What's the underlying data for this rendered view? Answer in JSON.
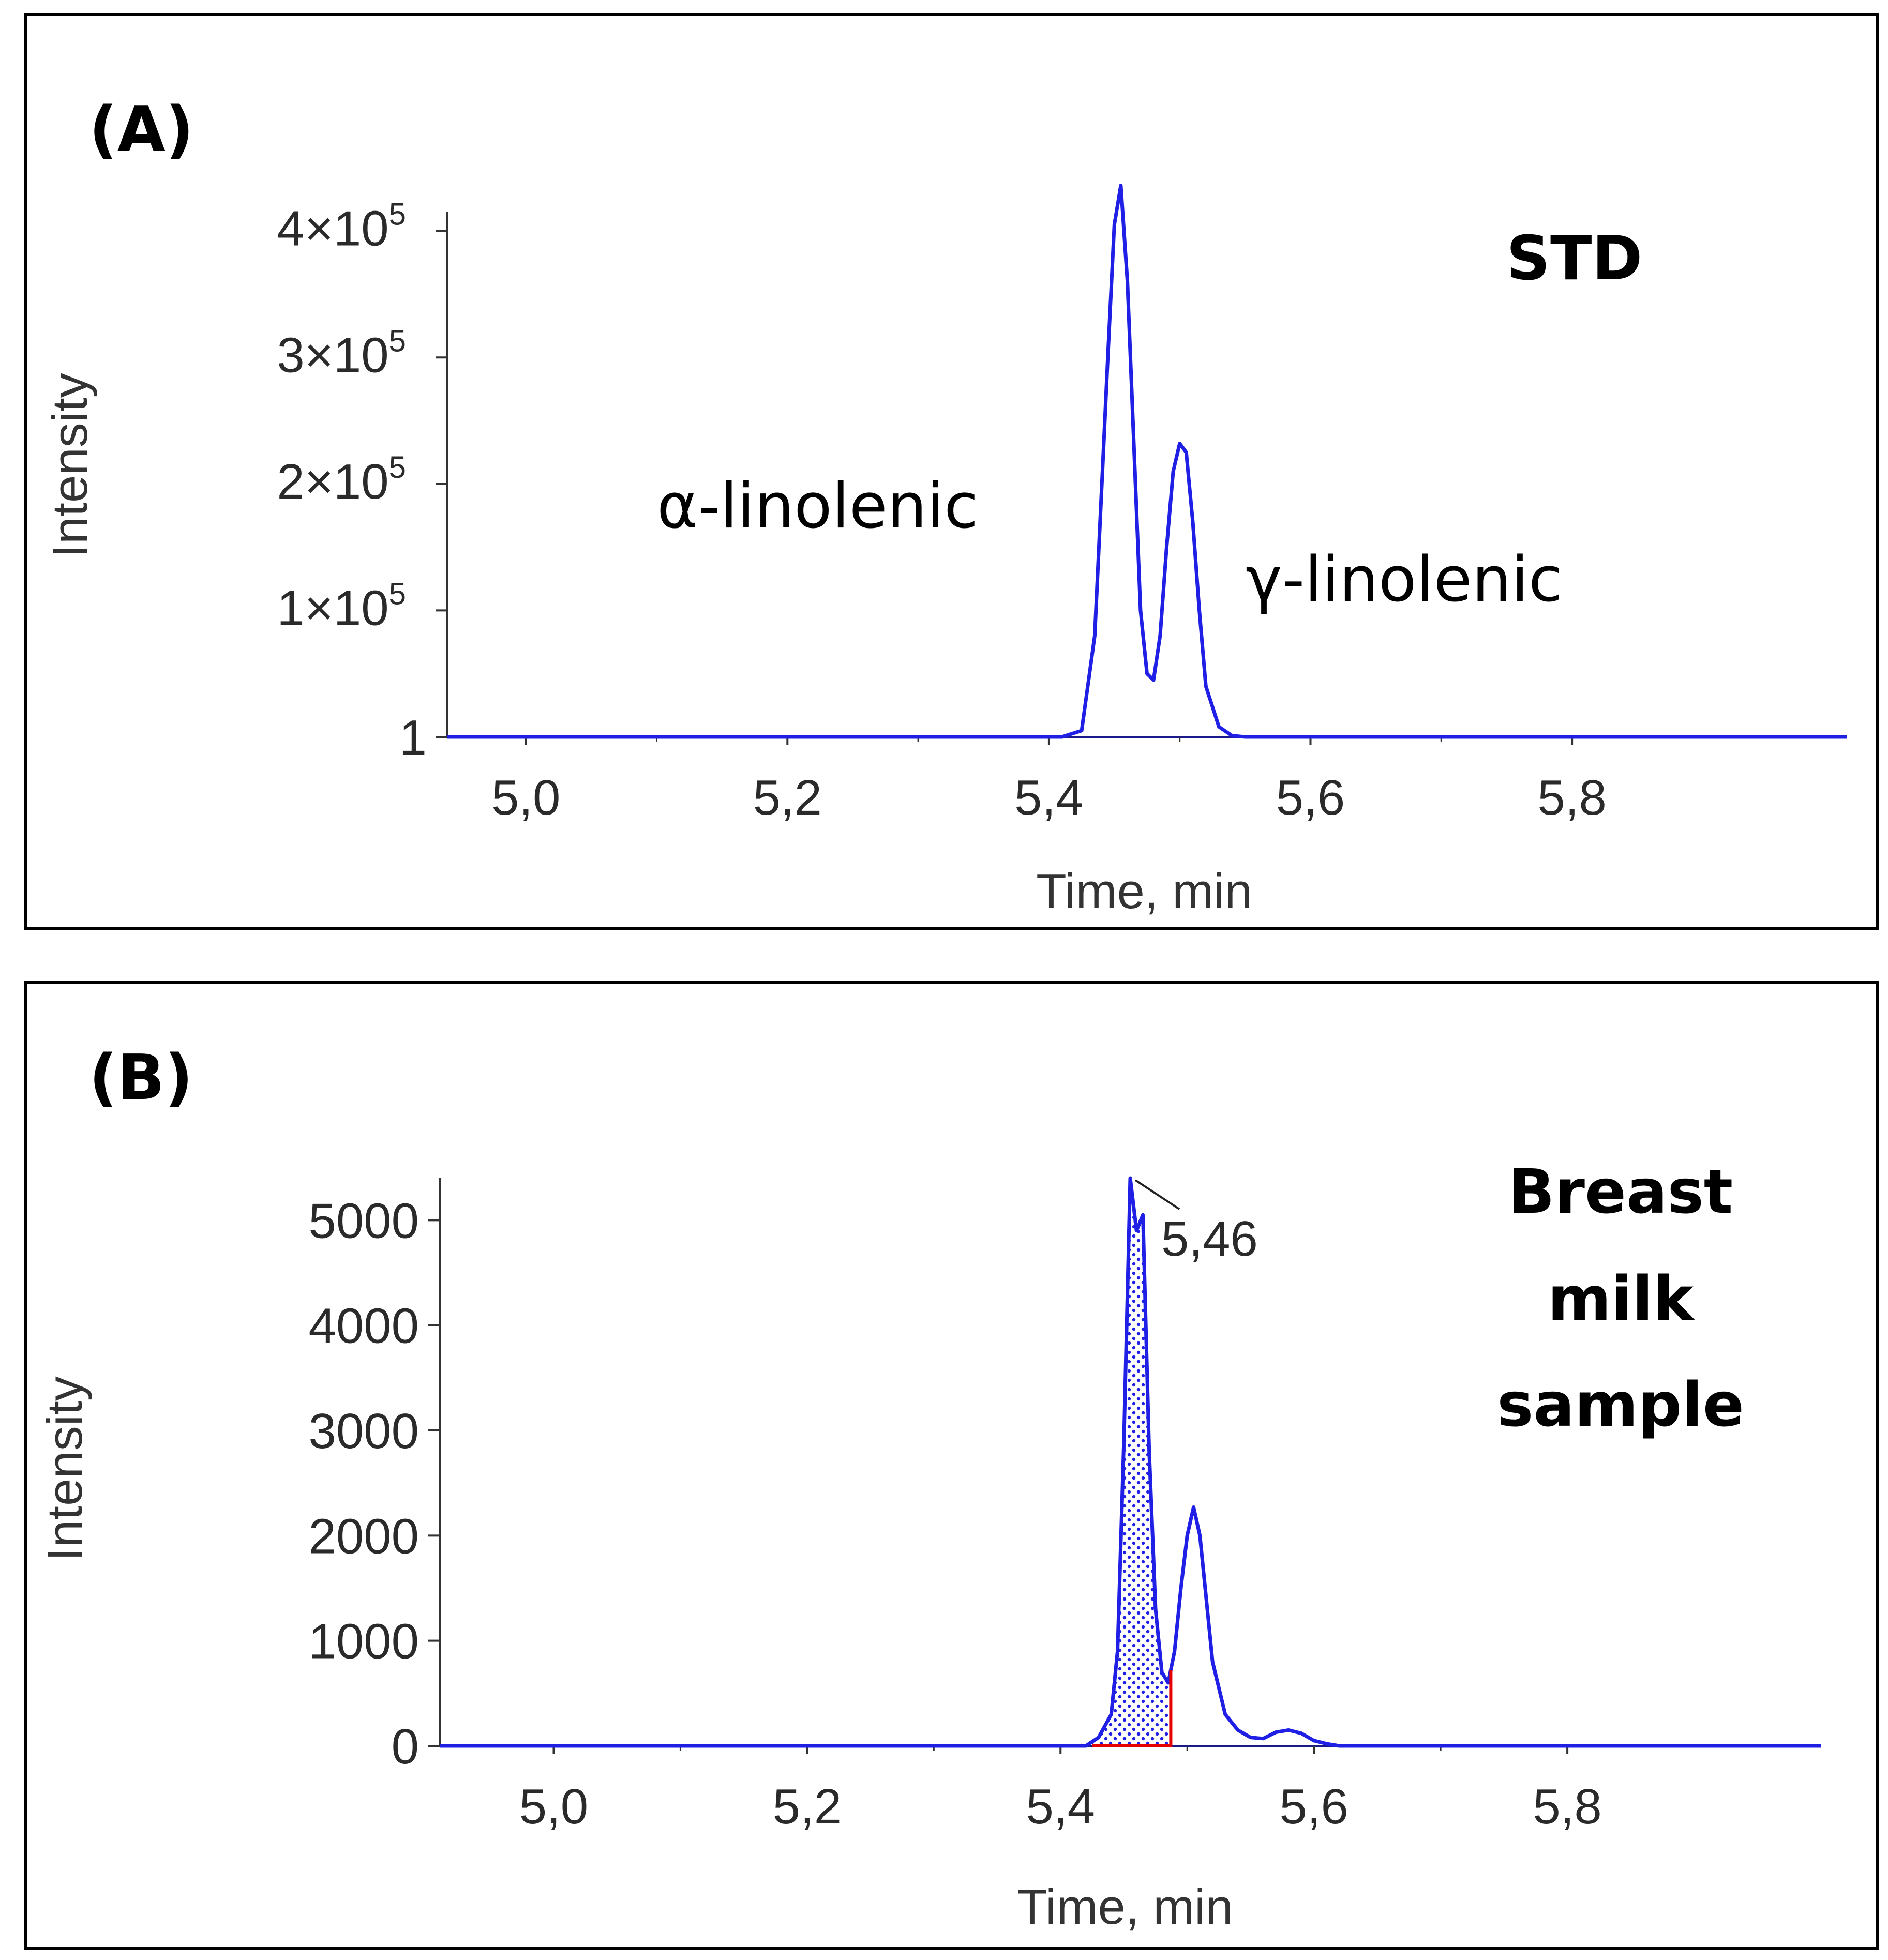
{
  "chart_data": [
    {
      "panel": "(A)",
      "type": "line",
      "title": "",
      "annotation": "STD",
      "xlabel": "Time, min",
      "ylabel": "Intensity",
      "xlim": [
        4.94,
        6.01
      ],
      "ylim": [
        1,
        415000
      ],
      "xticks": [
        {
          "value": 5.0,
          "label": "5,0"
        },
        {
          "value": 5.2,
          "label": "5,2"
        },
        {
          "value": 5.4,
          "label": "5,4"
        },
        {
          "value": 5.6,
          "label": "5,6"
        },
        {
          "value": 5.8,
          "label": "5,8"
        }
      ],
      "yticks": [
        {
          "value": 1,
          "label": "1"
        },
        {
          "value": 100000,
          "mantissa": "1×10",
          "exp": "5"
        },
        {
          "value": 200000,
          "mantissa": "2×10",
          "exp": "5"
        },
        {
          "value": 300000,
          "mantissa": "3×10",
          "exp": "5"
        },
        {
          "value": 400000,
          "mantissa": "4×10",
          "exp": "5"
        }
      ],
      "peak_labels": [
        {
          "text": "α-linolenic",
          "x": 5.455,
          "y": 436000
        },
        {
          "text": "γ-linolenic",
          "x": 5.505,
          "y": 232000
        }
      ],
      "series": [
        {
          "name": "STD",
          "color": "#1f1fe6",
          "x": [
            4.94,
            5.41,
            5.425,
            5.435,
            5.445,
            5.45,
            5.455,
            5.46,
            5.465,
            5.47,
            5.475,
            5.48,
            5.485,
            5.49,
            5.495,
            5.5,
            5.505,
            5.51,
            5.515,
            5.52,
            5.53,
            5.54,
            5.55,
            6.01
          ],
          "y": [
            1,
            1,
            5000,
            80000,
            300000,
            405000,
            436000,
            360000,
            230000,
            100000,
            50000,
            45000,
            80000,
            150000,
            210000,
            232000,
            225000,
            170000,
            100000,
            40000,
            8000,
            1000,
            1,
            1
          ]
        }
      ]
    },
    {
      "panel": "(B)",
      "type": "line",
      "title": "",
      "annotation_lines": [
        "Breast",
        "milk",
        "sample"
      ],
      "xlabel": "Time, min",
      "ylabel": "Intensity",
      "xlim": [
        4.91,
        6.0
      ],
      "ylim": [
        0,
        5400
      ],
      "xticks": [
        {
          "value": 5.0,
          "label": "5,0"
        },
        {
          "value": 5.2,
          "label": "5,2"
        },
        {
          "value": 5.4,
          "label": "5,4"
        },
        {
          "value": 5.6,
          "label": "5,6"
        },
        {
          "value": 5.8,
          "label": "5,8"
        }
      ],
      "yticks": [
        {
          "value": 0,
          "label": "0"
        },
        {
          "value": 1000,
          "label": "1000"
        },
        {
          "value": 2000,
          "label": "2000"
        },
        {
          "value": 3000,
          "label": "3000"
        },
        {
          "value": 4000,
          "label": "4000"
        },
        {
          "value": 5000,
          "label": "5000"
        }
      ],
      "retention_time_label": "5,46",
      "integration_window": [
        5.425,
        5.487
      ],
      "series": [
        {
          "name": "Breast milk sample",
          "color": "#1f1fe6",
          "x": [
            4.91,
            5.42,
            5.43,
            5.44,
            5.445,
            5.45,
            5.455,
            5.46,
            5.465,
            5.47,
            5.475,
            5.48,
            5.485,
            5.49,
            5.495,
            5.5,
            5.505,
            5.51,
            5.515,
            5.52,
            5.53,
            5.54,
            5.55,
            5.56,
            5.57,
            5.58,
            5.59,
            5.6,
            5.61,
            5.62,
            6.0
          ],
          "y": [
            0,
            0,
            80,
            300,
            900,
            2900,
            5400,
            4900,
            5050,
            2800,
            1300,
            700,
            600,
            900,
            1500,
            2000,
            2270,
            2000,
            1400,
            800,
            300,
            150,
            80,
            70,
            130,
            150,
            120,
            50,
            20,
            0,
            0
          ]
        }
      ]
    }
  ]
}
